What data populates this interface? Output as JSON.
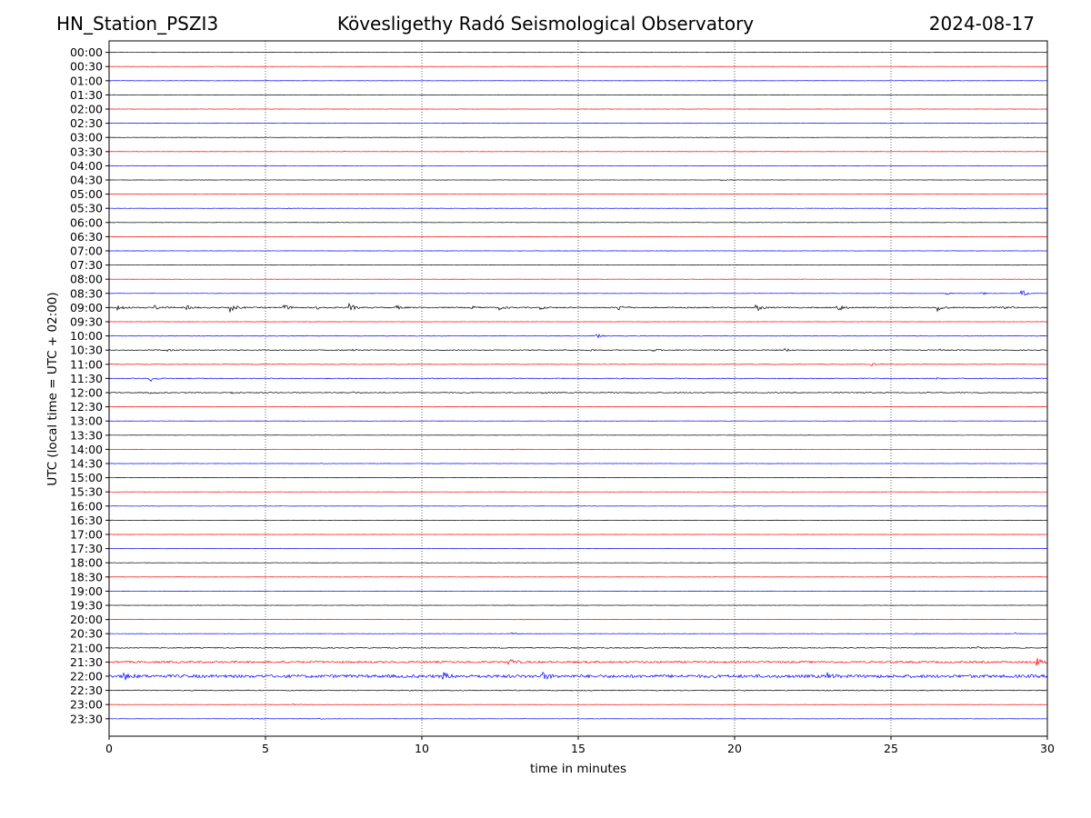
{
  "header": {
    "station": "HN_Station_PSZI3",
    "observatory": "Kövesligethy Radó Seismological Observatory",
    "date": "2024-08-17"
  },
  "chart_data": {
    "type": "line",
    "title": "Kövesligethy Radó Seismological Observatory",
    "xlabel": "time in minutes",
    "ylabel": "UTC (local time = UTC + 02:00)",
    "xlim": [
      0,
      30
    ],
    "xticks": [
      0,
      5,
      10,
      15,
      20,
      25,
      30
    ],
    "grid": "vertical dotted at x ticks",
    "rows": [
      "00:00",
      "00:30",
      "01:00",
      "01:30",
      "02:00",
      "02:30",
      "03:00",
      "03:30",
      "04:00",
      "04:30",
      "05:00",
      "05:30",
      "06:00",
      "06:30",
      "07:00",
      "07:30",
      "08:00",
      "08:30",
      "09:00",
      "09:30",
      "10:00",
      "10:30",
      "11:00",
      "11:30",
      "12:00",
      "12:30",
      "13:00",
      "13:30",
      "14:00",
      "14:30",
      "15:00",
      "15:30",
      "16:00",
      "16:30",
      "17:00",
      "17:30",
      "18:00",
      "18:30",
      "19:00",
      "19:30",
      "20:00",
      "20:30",
      "21:00",
      "21:30",
      "22:00",
      "22:30",
      "23:00",
      "23:30"
    ],
    "trace_colors": [
      "#000000",
      "#ff0000",
      "#0000ff"
    ],
    "events": [
      {
        "row": "04:00",
        "minute": 14.2,
        "amp": 0.4
      },
      {
        "row": "04:30",
        "minute": 19.6,
        "amp": 0.6
      },
      {
        "row": "05:30",
        "minute": 5.7,
        "amp": 0.5
      },
      {
        "row": "08:30",
        "minute": 26.8,
        "amp": 1.2
      },
      {
        "row": "08:30",
        "minute": 27.9,
        "amp": 1.5
      },
      {
        "row": "08:30",
        "minute": 29.2,
        "amp": 3.5
      },
      {
        "row": "09:00",
        "minute": 0.3,
        "amp": 3.5
      },
      {
        "row": "09:00",
        "minute": 1.5,
        "amp": 2.2
      },
      {
        "row": "09:00",
        "minute": 2.5,
        "amp": 2.0
      },
      {
        "row": "09:00",
        "minute": 3.9,
        "amp": 4.5
      },
      {
        "row": "09:00",
        "minute": 5.6,
        "amp": 3.0
      },
      {
        "row": "09:00",
        "minute": 6.7,
        "amp": 1.5
      },
      {
        "row": "09:00",
        "minute": 7.7,
        "amp": 4.0
      },
      {
        "row": "09:00",
        "minute": 9.2,
        "amp": 1.8
      },
      {
        "row": "09:00",
        "minute": 11.6,
        "amp": 1.5
      },
      {
        "row": "09:00",
        "minute": 12.5,
        "amp": 2.0
      },
      {
        "row": "09:00",
        "minute": 13.8,
        "amp": 1.5
      },
      {
        "row": "09:00",
        "minute": 16.3,
        "amp": 3.0
      },
      {
        "row": "09:00",
        "minute": 20.7,
        "amp": 4.0
      },
      {
        "row": "09:00",
        "minute": 23.3,
        "amp": 4.5
      },
      {
        "row": "09:00",
        "minute": 26.5,
        "amp": 4.0
      },
      {
        "row": "09:00",
        "minute": 28.6,
        "amp": 1.8
      },
      {
        "row": "10:00",
        "minute": 15.6,
        "amp": 2.0
      },
      {
        "row": "10:30",
        "minute": 1.9,
        "amp": 1.0
      },
      {
        "row": "10:30",
        "minute": 7.8,
        "amp": 1.6
      },
      {
        "row": "10:30",
        "minute": 15.4,
        "amp": 1.0
      },
      {
        "row": "10:30",
        "minute": 17.4,
        "amp": 1.0
      },
      {
        "row": "10:30",
        "minute": 21.6,
        "amp": 1.8
      },
      {
        "row": "10:30",
        "minute": 26.6,
        "amp": 0.8
      },
      {
        "row": "11:00",
        "minute": 24.4,
        "amp": 1.5
      },
      {
        "row": "11:30",
        "minute": 1.3,
        "amp": 3.5
      },
      {
        "row": "11:30",
        "minute": 26.5,
        "amp": 0.8
      },
      {
        "row": "12:00",
        "minute": 1.3,
        "amp": 0.8
      },
      {
        "row": "12:00",
        "minute": 3.9,
        "amp": 0.8
      },
      {
        "row": "12:00",
        "minute": 7.8,
        "amp": 0.8
      },
      {
        "row": "12:00",
        "minute": 13.9,
        "amp": 0.8
      },
      {
        "row": "12:00",
        "minute": 23.9,
        "amp": 0.8
      },
      {
        "row": "14:00",
        "minute": 12.9,
        "amp": 0.6
      },
      {
        "row": "14:30",
        "minute": 6.8,
        "amp": 0.6
      },
      {
        "row": "20:30",
        "minute": 12.9,
        "amp": 1.2
      },
      {
        "row": "20:30",
        "minute": 25.8,
        "amp": 1.0
      },
      {
        "row": "20:30",
        "minute": 29.0,
        "amp": 1.0
      },
      {
        "row": "21:00",
        "minute": 27.8,
        "amp": 1.0
      },
      {
        "row": "21:30",
        "minute": 12.8,
        "amp": 3.5
      },
      {
        "row": "21:30",
        "minute": 29.7,
        "amp": 3.5
      },
      {
        "row": "22:00",
        "minute": 0.5,
        "amp": 3.5
      },
      {
        "row": "22:00",
        "minute": 10.7,
        "amp": 3.0
      },
      {
        "row": "22:00",
        "minute": 13.9,
        "amp": 3.5
      },
      {
        "row": "22:00",
        "minute": 23.0,
        "amp": 2.5
      },
      {
        "row": "23:00",
        "minute": 5.9,
        "amp": 1.0
      },
      {
        "row": "23:30",
        "minute": 4.6,
        "amp": 0.6
      },
      {
        "row": "23:30",
        "minute": 6.7,
        "amp": 0.8
      }
    ],
    "noisy_rows": [
      {
        "row": "09:00",
        "level": 0.6
      },
      {
        "row": "10:00",
        "level": 0.35
      },
      {
        "row": "10:30",
        "level": 0.45
      },
      {
        "row": "11:00",
        "level": 0.35
      },
      {
        "row": "11:30",
        "level": 0.45
      },
      {
        "row": "12:00",
        "level": 0.5
      },
      {
        "row": "21:00",
        "level": 0.5
      },
      {
        "row": "21:30",
        "level": 1.0
      },
      {
        "row": "22:00",
        "level": 1.6
      },
      {
        "row": "22:30",
        "level": 0.5
      }
    ]
  }
}
